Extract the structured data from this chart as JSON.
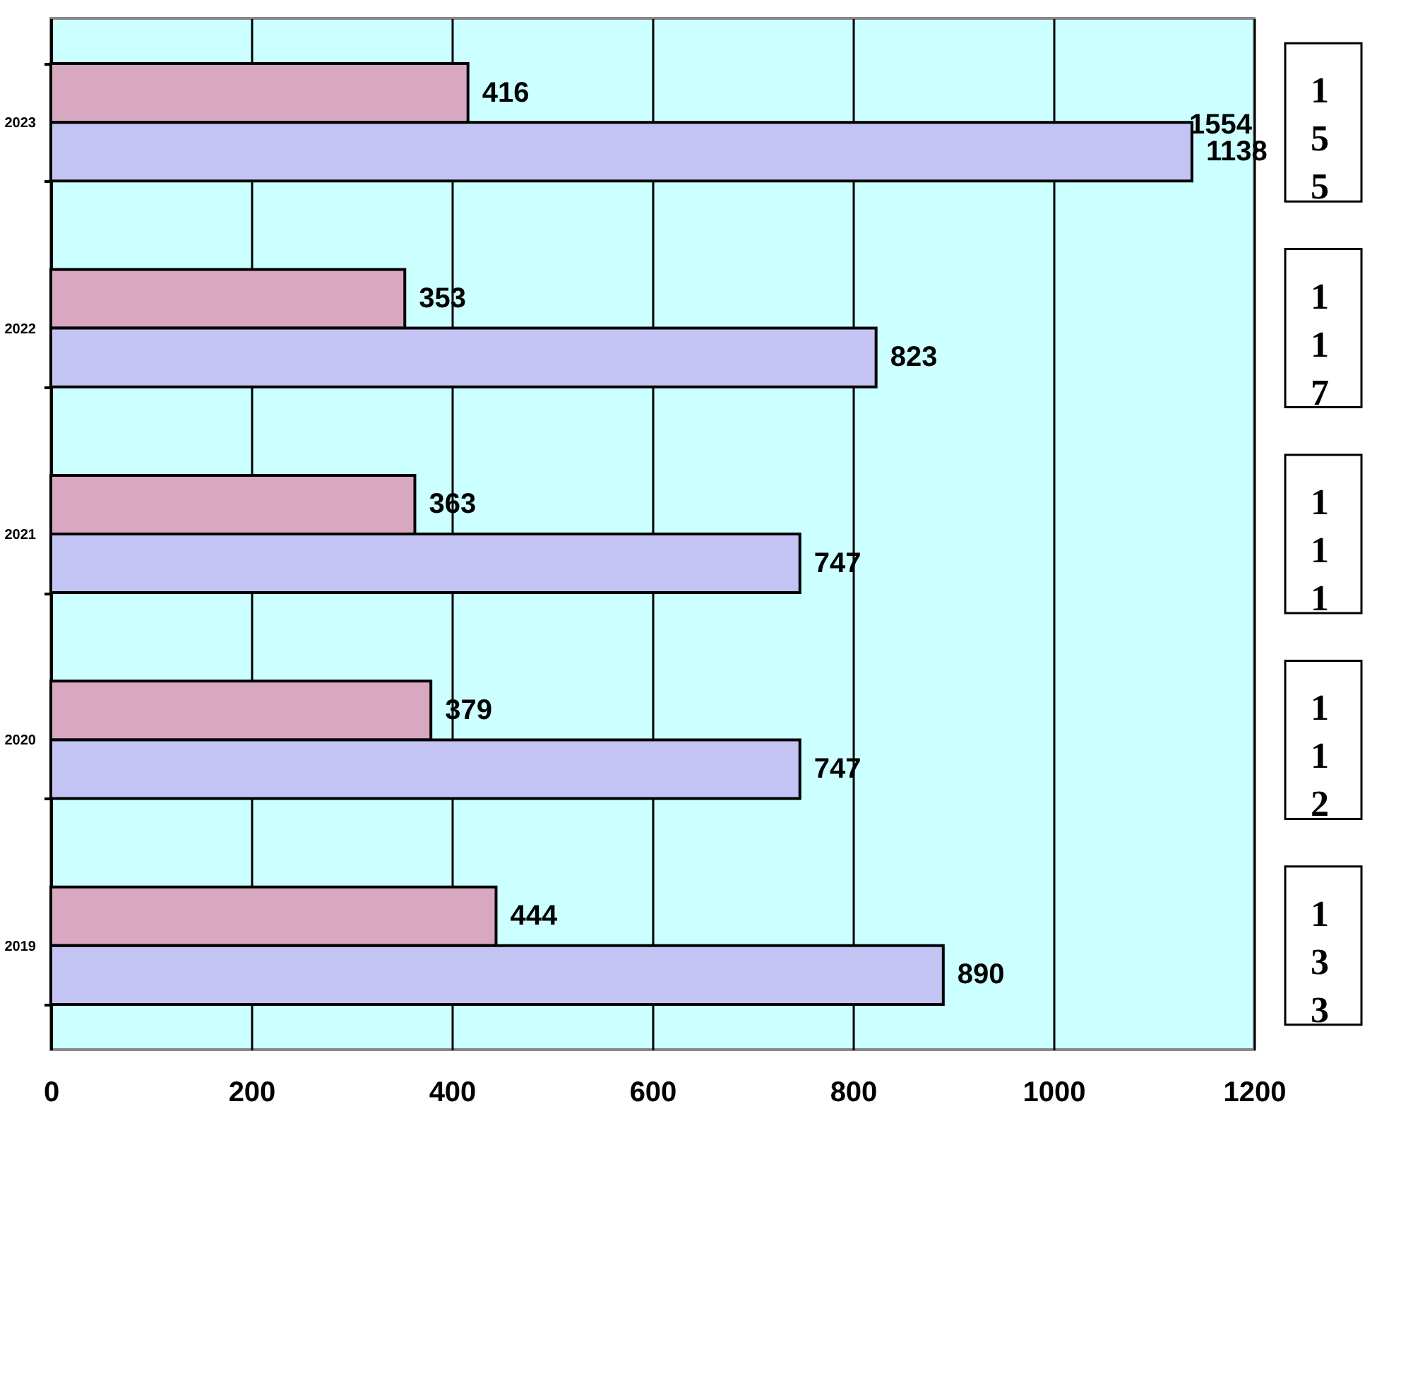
{
  "chart_data": {
    "type": "bar",
    "orientation": "horizontal",
    "categories": [
      "2023",
      "2022",
      "2021",
      "2020",
      "2019"
    ],
    "series": [
      {
        "color": "#d8a8c0",
        "values": [
          416,
          353,
          363,
          379,
          444
        ]
      },
      {
        "color": "#c4c4f4",
        "values": [
          1138,
          823,
          747,
          747,
          890
        ]
      }
    ],
    "xlim": [
      0,
      1200
    ],
    "xticks": [
      0,
      200,
      400,
      600,
      800,
      1000,
      1200
    ],
    "grid": "x",
    "data_labels": true,
    "legend": false,
    "annotations": [
      {
        "text": "1554",
        "x": 1138,
        "y": "2023"
      },
      "155",
      "117",
      "111",
      "112",
      "133"
    ]
  }
}
